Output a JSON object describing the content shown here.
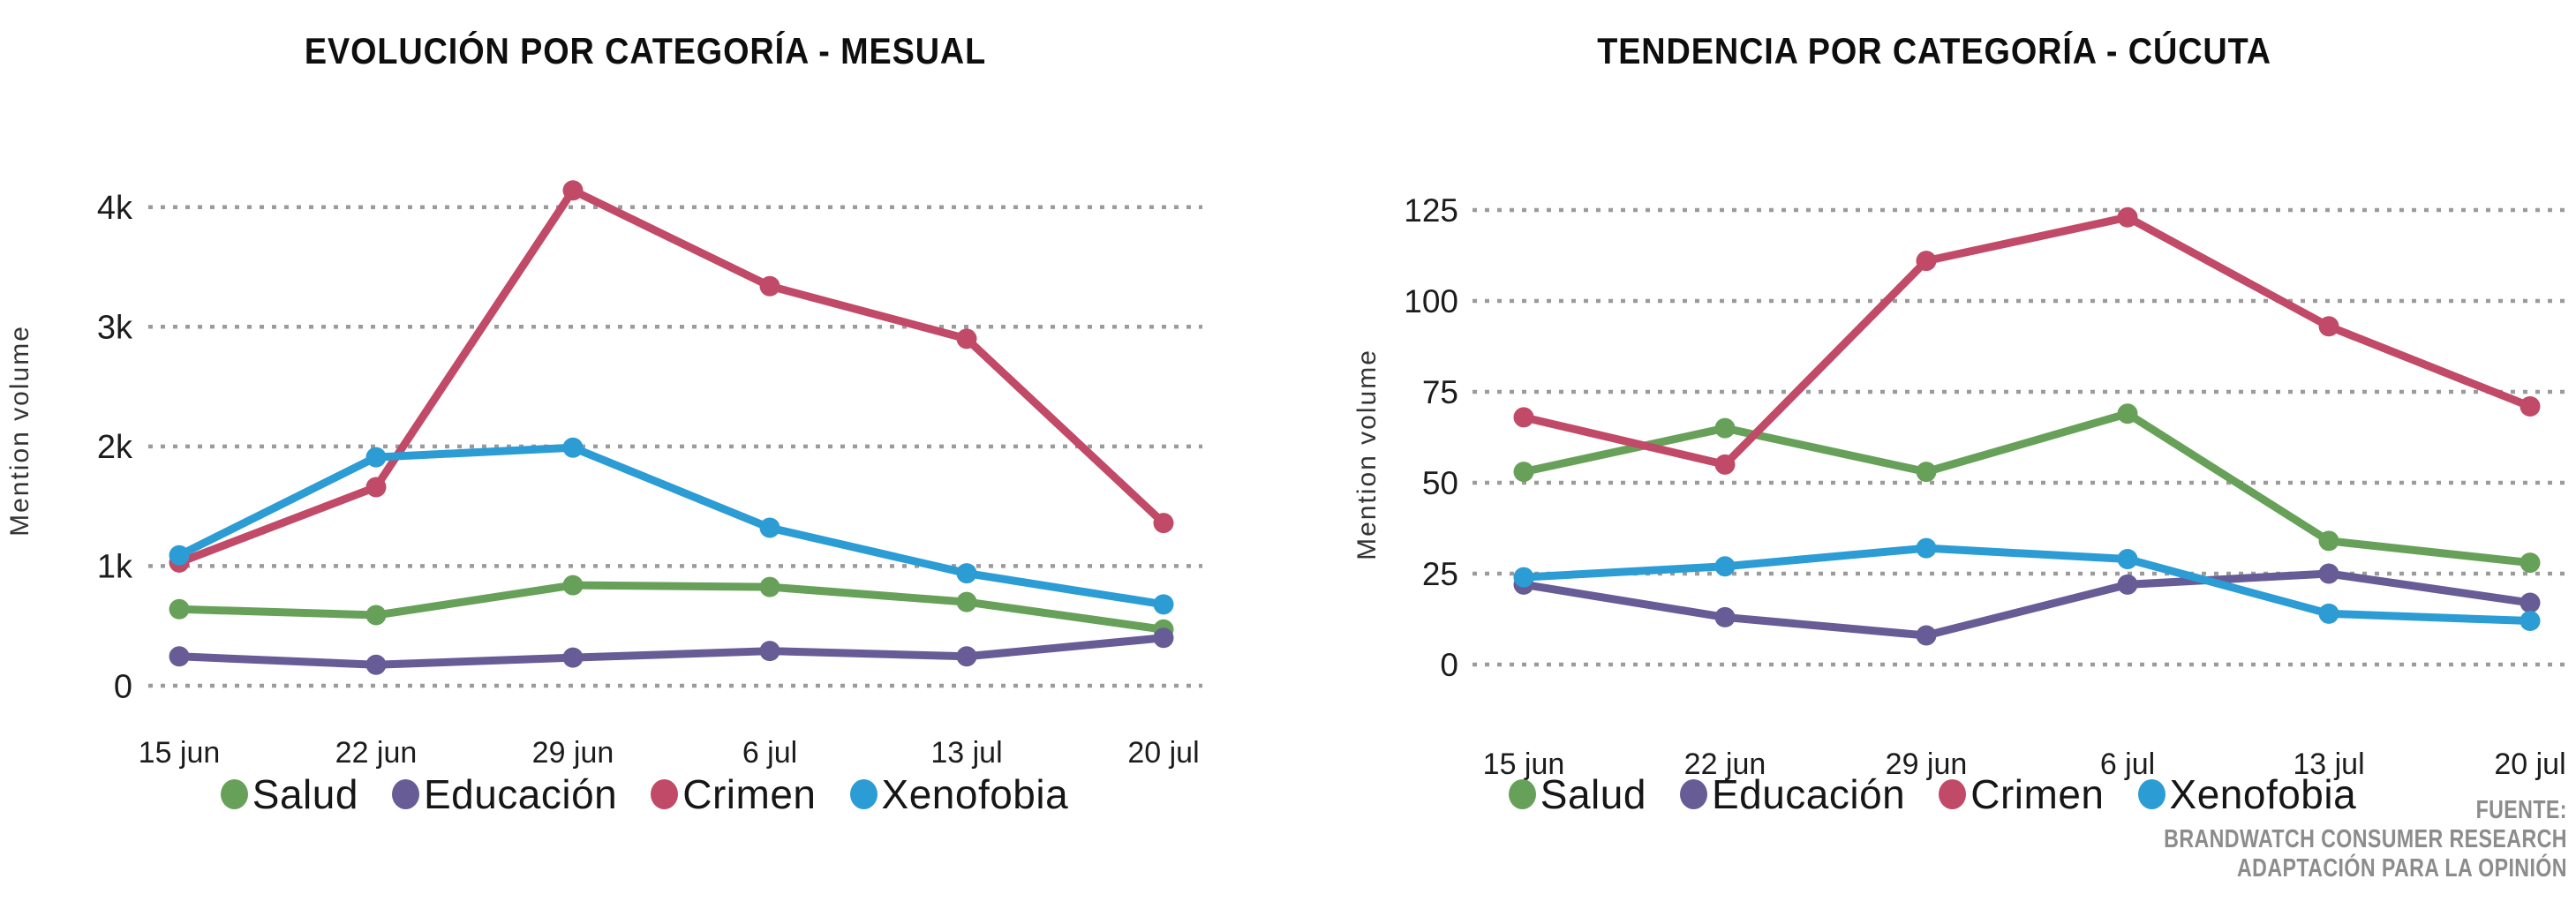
{
  "colors": {
    "salud": "#67A159",
    "educacion": "#675C96",
    "crimen": "#C14A68",
    "xenofobia": "#2C9CD4",
    "grid": "#9b9b9b",
    "tick_text": "#1c1c1c",
    "axis_title_text": "#333333",
    "source_text": "#8c8c8c"
  },
  "legend": {
    "items": [
      {
        "label": "Salud",
        "color": "#67A159"
      },
      {
        "label": "Educación",
        "color": "#675C96"
      },
      {
        "label": "Crimen",
        "color": "#C14A68"
      },
      {
        "label": "Xenofobia",
        "color": "#2C9CD4"
      }
    ]
  },
  "source_note": {
    "lines": [
      "FUENTE:",
      "BRANDWATCH CONSUMER RESEARCH",
      "ADAPTACIÓN PARA LA OPINIÓN"
    ]
  },
  "chart_data": [
    {
      "id": "evolucion-mesual",
      "type": "line",
      "title": "EVOLUCIÓN POR CATEGORÍA - MESUAL",
      "xlabel": "",
      "ylabel": "Mention volume",
      "categories": [
        "15 jun",
        "22 jun",
        "29 jun",
        "6 jul",
        "13 jul",
        "20 jul"
      ],
      "ylim": [
        0,
        4330
      ],
      "grid": "horizontal-dotted",
      "legend_position": "bottom",
      "yticks": [
        {
          "label": "4k",
          "value": 4000
        },
        {
          "label": "3k",
          "value": 3000
        },
        {
          "label": "2k",
          "value": 2000
        },
        {
          "label": "1k",
          "value": 1000
        },
        {
          "label": "0",
          "value": 0
        }
      ],
      "series": [
        {
          "name": "Salud",
          "color": "#67A159",
          "values": [
            640,
            590,
            840,
            825,
            700,
            470
          ]
        },
        {
          "name": "Educación",
          "color": "#675C96",
          "values": [
            245,
            175,
            235,
            290,
            245,
            400
          ]
        },
        {
          "name": "Crimen",
          "color": "#C14A68",
          "values": [
            1030,
            1660,
            4140,
            3340,
            2900,
            1360
          ]
        },
        {
          "name": "Xenofobia",
          "color": "#2C9CD4",
          "values": [
            1090,
            1910,
            1990,
            1320,
            940,
            680
          ]
        }
      ]
    },
    {
      "id": "tendencia-cucuta",
      "type": "line",
      "title": "TENDENCIA POR CATEGORÍA - CÚCUTA",
      "xlabel": "",
      "ylabel": "Mention volume",
      "categories": [
        "15 jun",
        "22 jun",
        "29 jun",
        "6 jul",
        "13 jul",
        "20 jul"
      ],
      "ylim": [
        0,
        133
      ],
      "grid": "horizontal-dotted",
      "legend_position": "bottom",
      "yticks": [
        {
          "label": "125",
          "value": 125
        },
        {
          "label": "100",
          "value": 100
        },
        {
          "label": "75",
          "value": 75
        },
        {
          "label": "50",
          "value": 50
        },
        {
          "label": "25",
          "value": 25
        },
        {
          "label": "0",
          "value": 0
        }
      ],
      "series": [
        {
          "name": "Salud",
          "color": "#67A159",
          "values": [
            53,
            65,
            53,
            69,
            34,
            28
          ]
        },
        {
          "name": "Educación",
          "color": "#675C96",
          "values": [
            22,
            13,
            8,
            22,
            25,
            17
          ]
        },
        {
          "name": "Crimen",
          "color": "#C14A68",
          "values": [
            68,
            55,
            111,
            123,
            93,
            71
          ]
        },
        {
          "name": "Xenofobia",
          "color": "#2C9CD4",
          "values": [
            24,
            27,
            32,
            29,
            14,
            12
          ]
        }
      ]
    }
  ]
}
